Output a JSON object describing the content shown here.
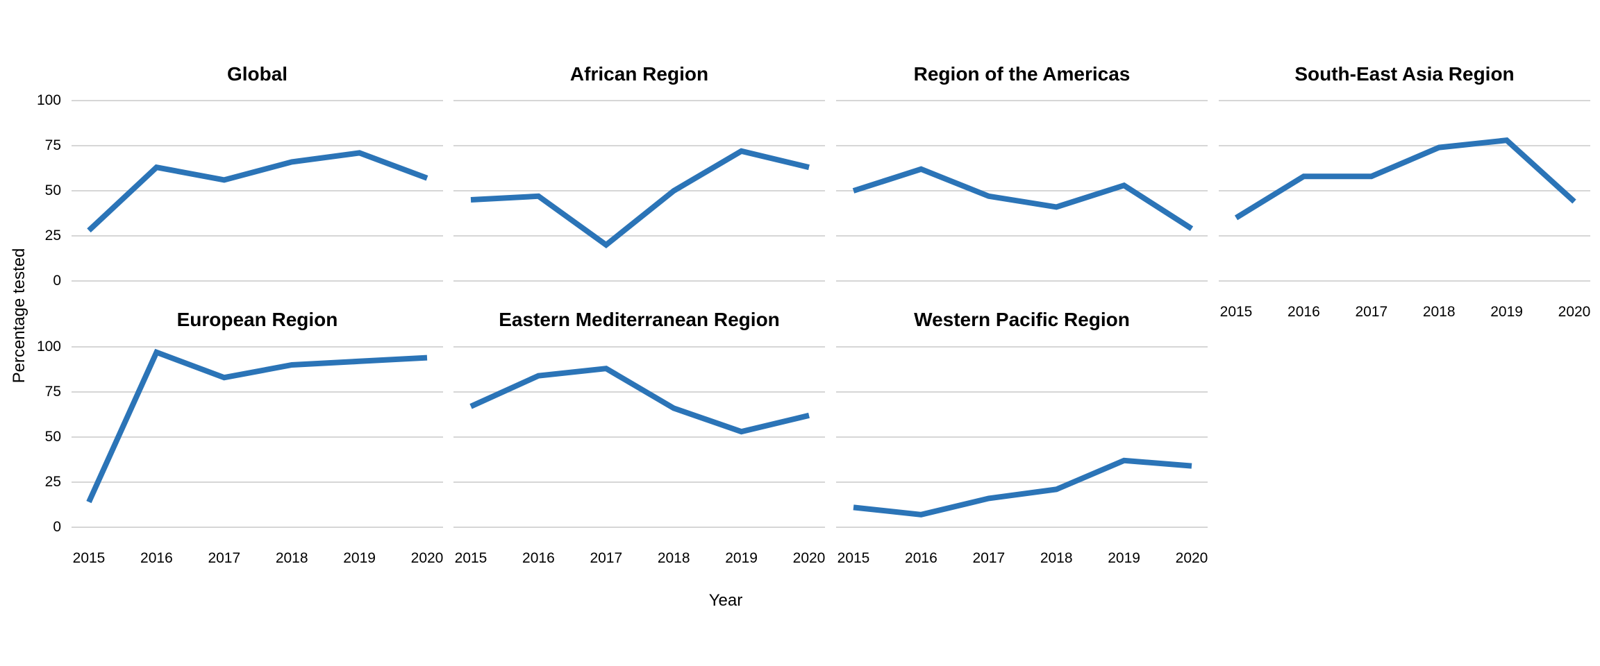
{
  "chart_data": {
    "type": "line",
    "x": [
      2015,
      2016,
      2017,
      2018,
      2019,
      2020
    ],
    "xlabel": "Year",
    "ylabel": "Percentage tested",
    "ylim": [
      0,
      100
    ],
    "yticks": [
      100,
      75,
      50,
      25,
      0
    ],
    "grid": "horizontal-only",
    "legend": "none",
    "line_color": "#2b74b7",
    "grid_color": "#d6d6d6",
    "text_color": "#000000",
    "facets": [
      {
        "title": "Global",
        "values": [
          28,
          63,
          56,
          66,
          71,
          57
        ]
      },
      {
        "title": "African Region",
        "values": [
          45,
          47,
          20,
          50,
          72,
          63
        ]
      },
      {
        "title": "Region of the Americas",
        "values": [
          50,
          62,
          47,
          41,
          53,
          29
        ]
      },
      {
        "title": "South-East Asia Region",
        "values": [
          35,
          58,
          58,
          74,
          78,
          44
        ]
      },
      {
        "title": "European Region",
        "values": [
          14,
          97,
          83,
          90,
          92,
          94
        ]
      },
      {
        "title": "Eastern Mediterranean Region",
        "values": [
          67,
          84,
          88,
          66,
          53,
          62
        ]
      },
      {
        "title": "Western Pacific Region",
        "values": [
          11,
          7,
          16,
          21,
          37,
          34
        ]
      }
    ]
  }
}
